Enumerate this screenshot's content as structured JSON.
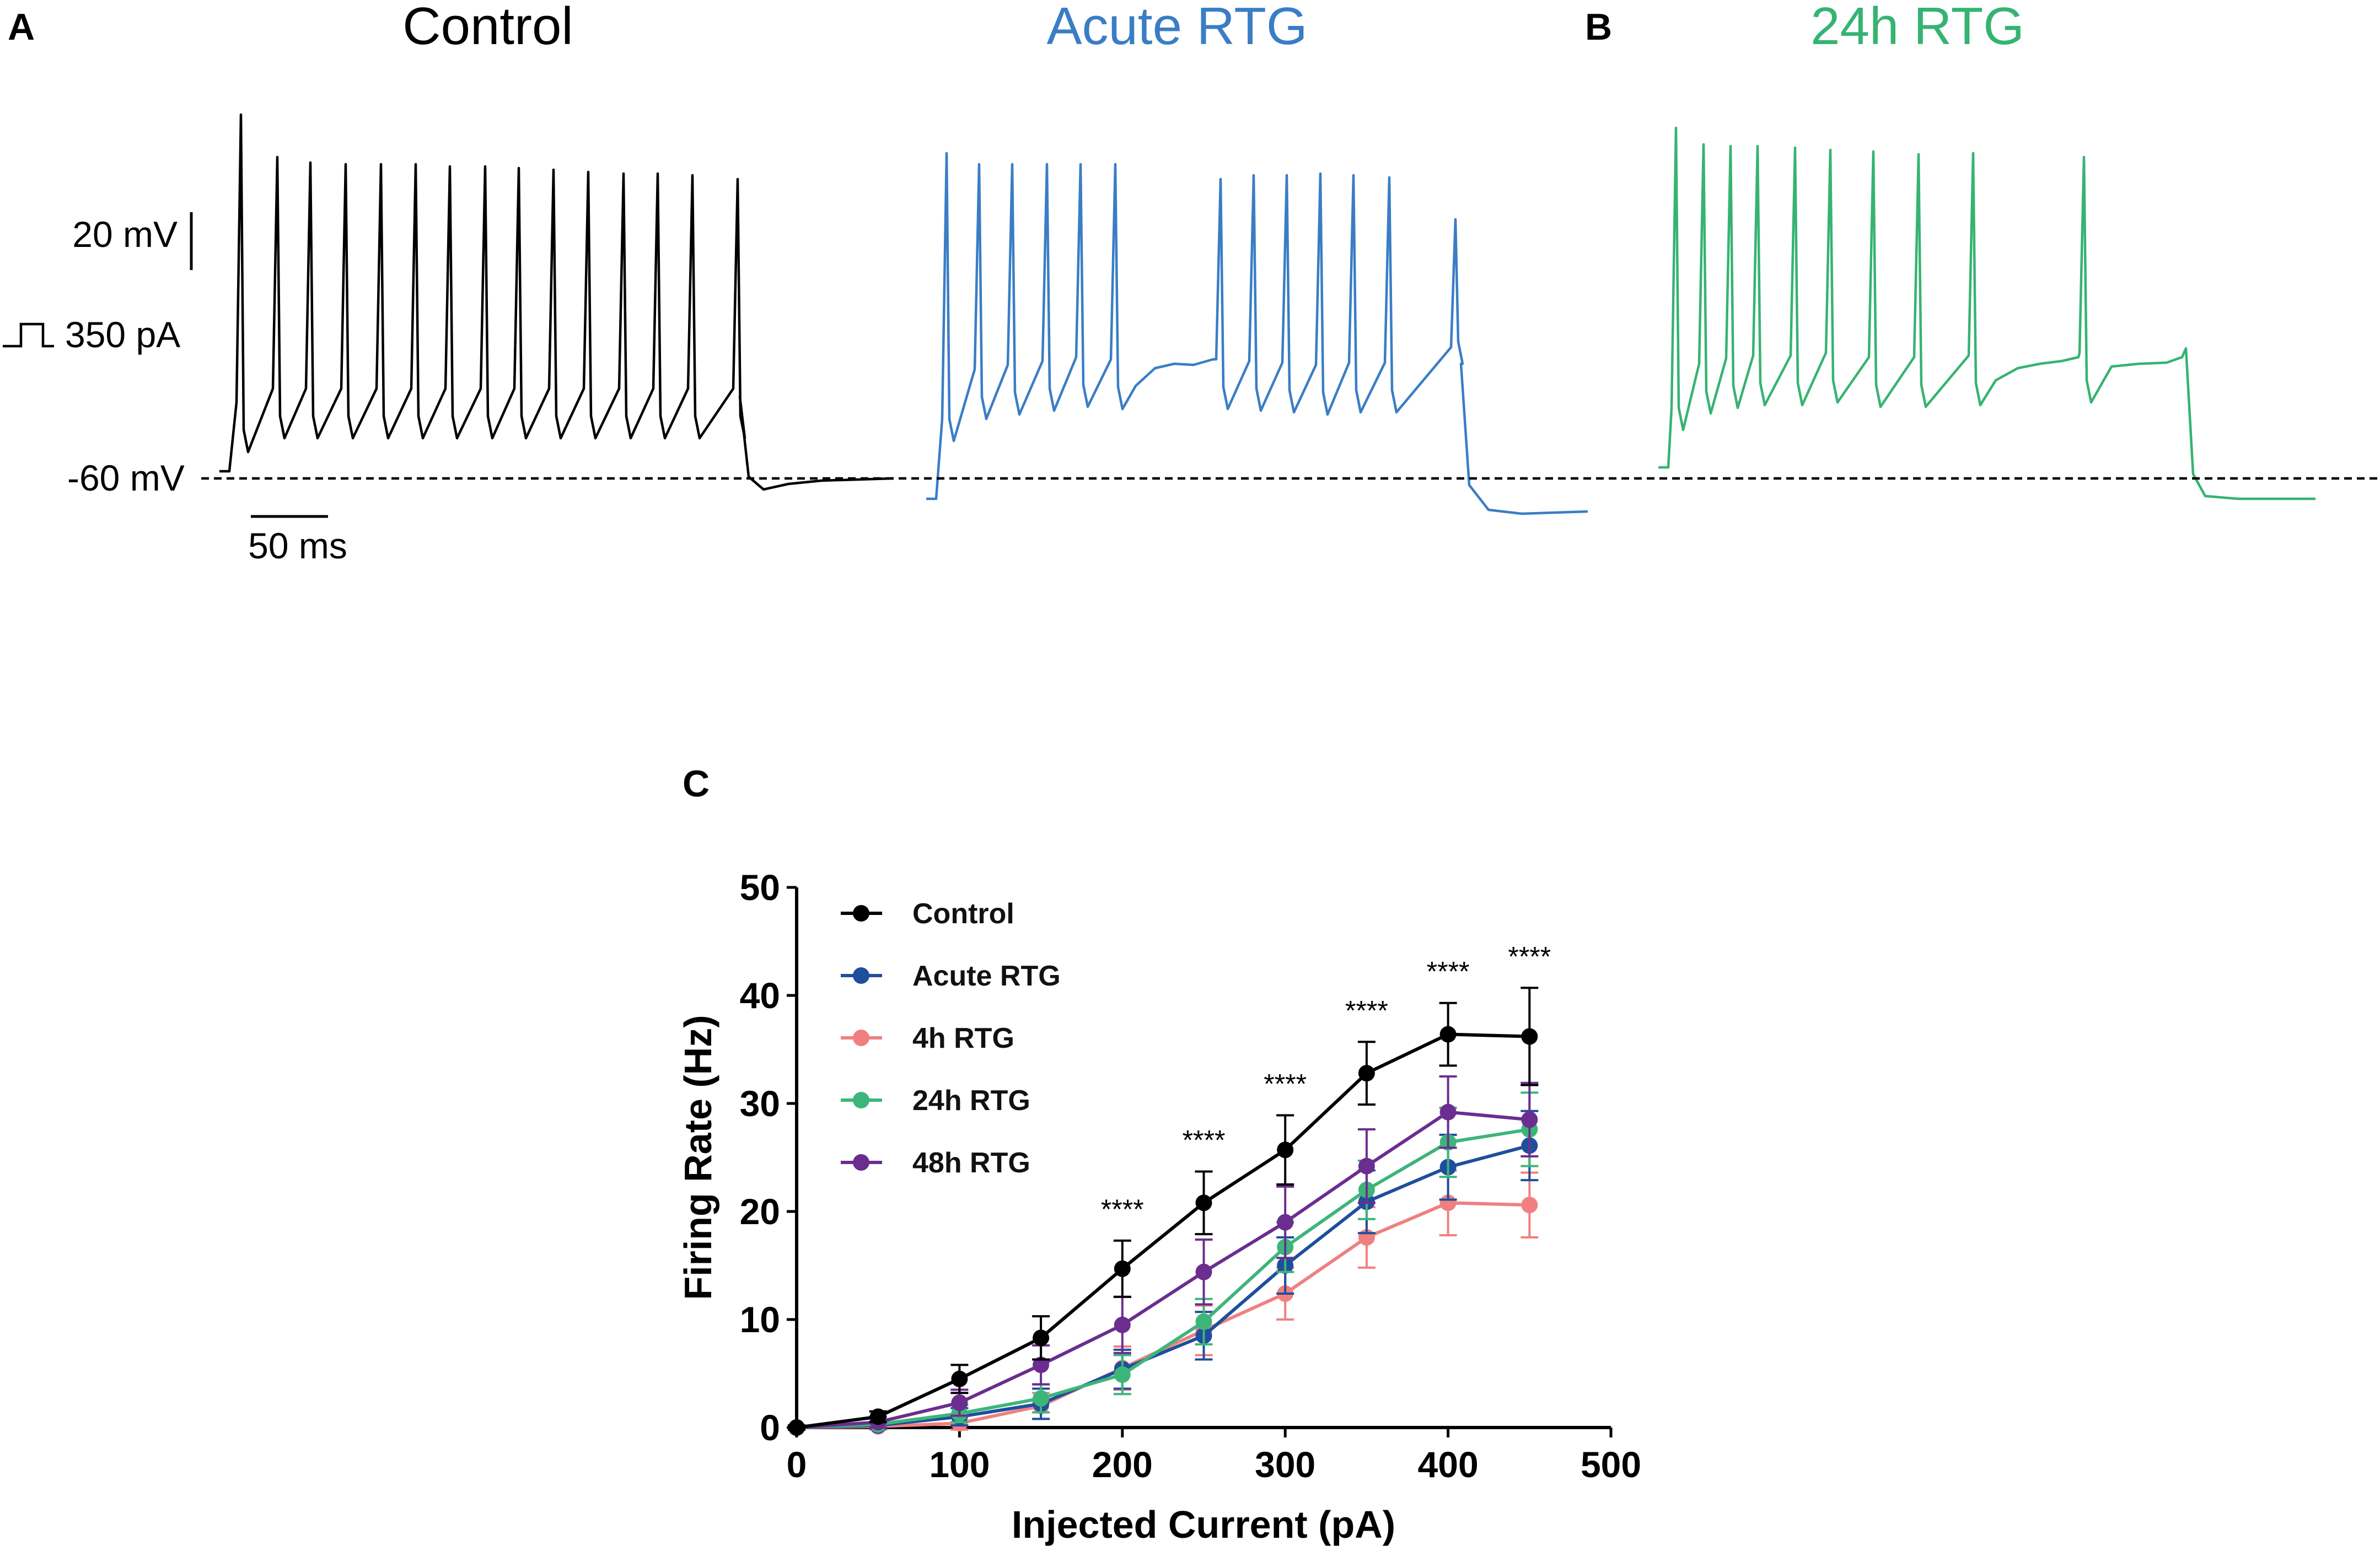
{
  "panels": {
    "a_letter": "A",
    "b_letter": "B",
    "c_letter": "C"
  },
  "traces": {
    "items": [
      {
        "title": "Control",
        "color": "#000000"
      },
      {
        "title": "Acute RTG",
        "color": "#3A7DC5"
      },
      {
        "title": "24h RTG",
        "color": "#36B372"
      }
    ],
    "scale_voltage": "20 mV",
    "stimulus": "350 pA",
    "baseline": "-60 mV",
    "scale_time": "50 ms"
  },
  "chart_data": {
    "type": "line",
    "title": "",
    "xlabel": "Injected Current (pA)",
    "ylabel": "Firing Rate (Hz)",
    "xlim": [
      0,
      500
    ],
    "ylim": [
      0,
      50
    ],
    "xticks": [
      0,
      100,
      200,
      300,
      400,
      500
    ],
    "yticks": [
      0,
      10,
      20,
      30,
      40,
      50
    ],
    "x": [
      0,
      50,
      100,
      150,
      200,
      250,
      300,
      350,
      400,
      450
    ],
    "series": [
      {
        "name": "Control",
        "color": "#000000",
        "values": [
          0,
          1.0,
          4.5,
          8.3,
          14.7,
          20.8,
          25.7,
          32.8,
          36.4,
          36.2
        ],
        "errors": [
          0.2,
          0.5,
          1.3,
          2.0,
          2.6,
          2.9,
          3.2,
          2.9,
          2.9,
          4.5
        ]
      },
      {
        "name": "Acute RTG",
        "color": "#1F4E9C",
        "values": [
          0,
          0.2,
          1.0,
          2.2,
          5.4,
          8.5,
          15.0,
          20.9,
          24.1,
          26.1
        ],
        "errors": [
          0.1,
          0.3,
          0.8,
          1.4,
          1.8,
          2.2,
          2.6,
          2.9,
          3.0,
          3.2
        ]
      },
      {
        "name": "4h RTG",
        "color": "#F08080",
        "values": [
          0,
          0.1,
          0.4,
          2.0,
          5.5,
          9.0,
          12.4,
          17.6,
          20.8,
          20.6
        ],
        "errors": [
          0.1,
          0.3,
          0.6,
          1.2,
          2.0,
          2.3,
          2.4,
          2.8,
          3.0,
          3.0
        ]
      },
      {
        "name": "24h RTG",
        "color": "#3DB57A",
        "values": [
          0,
          0.3,
          1.3,
          2.7,
          4.9,
          9.8,
          16.7,
          22.0,
          26.4,
          27.6
        ],
        "errors": [
          0.1,
          0.3,
          0.8,
          1.3,
          1.8,
          2.1,
          2.3,
          2.7,
          3.2,
          3.4
        ]
      },
      {
        "name": "48h RTG",
        "color": "#6B2D8F",
        "values": [
          0,
          0.5,
          2.3,
          5.8,
          9.5,
          14.4,
          19.0,
          24.2,
          29.2,
          28.5
        ],
        "errors": [
          0.2,
          0.5,
          1.2,
          1.8,
          2.6,
          3.0,
          3.3,
          3.4,
          3.3,
          3.4
        ]
      }
    ],
    "significance": [
      {
        "x": 200,
        "label": "****"
      },
      {
        "x": 250,
        "label": "****"
      },
      {
        "x": 300,
        "label": "****"
      },
      {
        "x": 350,
        "label": "****"
      },
      {
        "x": 400,
        "label": "****"
      },
      {
        "x": 450,
        "label": "****"
      }
    ],
    "legend_position": "top-left"
  }
}
